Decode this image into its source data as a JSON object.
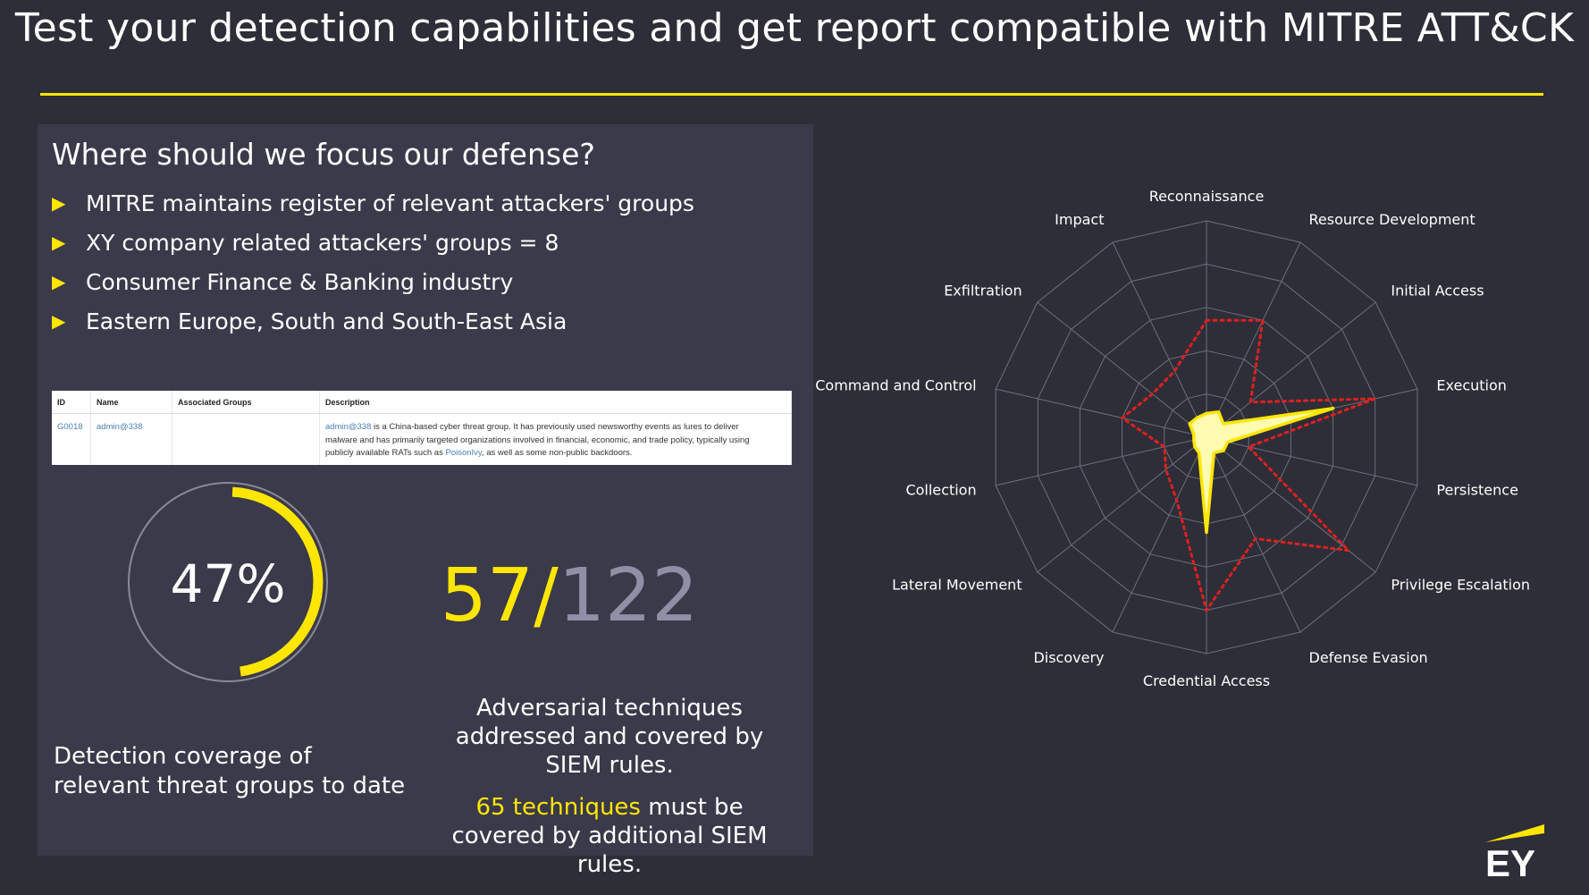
{
  "page": {
    "title": "Test your detection capabilities and get report compatible with MITRE ATT&CK"
  },
  "focus": {
    "heading": "Where should we focus our defense?",
    "bullets": [
      "MITRE maintains register of relevant attackers' groups",
      "XY company related attackers' groups = 8",
      "Consumer Finance & Banking industry",
      "Eastern Europe, South and South-East Asia"
    ],
    "bullet_icon": "triangle-right-icon"
  },
  "group_table": {
    "headers": [
      "ID",
      "Name",
      "Associated Groups",
      "Description"
    ],
    "row": {
      "id": "G0018",
      "name": "admin@338",
      "associated_groups": "",
      "description_line1_link": "admin@338",
      "description_line1_rest": " is a China-based cyber threat group. It has previously used newsworthy events as lures to deliver",
      "description_line2": "malware and has primarily targeted organizations involved in financial, economic, and trade policy, typically using",
      "description_line3_start": "publicly available RATs such as ",
      "description_line3_link": "PoisonIvy",
      "description_line3_end": ", as well as some non-public backdoors."
    }
  },
  "coverage": {
    "percent_label": "47%",
    "fraction": 0.47,
    "label": "Detection coverage of relevant threat groups to date"
  },
  "techniques": {
    "covered": "57",
    "slash": "/",
    "total": "122",
    "covered_label": "Adversarial techniques addressed and covered by SIEM rules.",
    "remaining_highlight": "65 techniques",
    "remaining_rest": " must be covered by additional SIEM rules."
  },
  "colors": {
    "background": "#2e2e38",
    "panel": "#3a3a4a",
    "accent_yellow": "#ffe600",
    "muted_number": "#8f8fa6",
    "required_line": "#e0201f",
    "grid": "#6e6e7e"
  },
  "chart_data": {
    "type": "radar",
    "categories": [
      "Reconnaissance",
      "Resource Development",
      "Initial Access",
      "Execution",
      "Persistence",
      "Privilege Escalation",
      "Defense Evasion",
      "Credential Access",
      "Discovery",
      "Lateral Movement",
      "Collection",
      "Command and Control",
      "Exfiltration",
      "Impact"
    ],
    "rlim": [
      0,
      5
    ],
    "rings": 5,
    "grid": true,
    "series": [
      {
        "values": [
          0.55,
          0.65,
          0.5,
          3,
          0.5,
          0.5,
          0.4,
          2.2,
          0.4,
          0.35,
          0.3,
          0.3,
          0.5,
          0.5
        ],
        "style": "filled yellow"
      },
      {
        "values": [
          2.7,
          3.0,
          1.3,
          4.0,
          1.0,
          4.2,
          2.6,
          4.0,
          1.6,
          1.2,
          1.0,
          2.0,
          1.6,
          1.7
        ],
        "style": "dotted red"
      }
    ]
  },
  "logo": {
    "text": "EY"
  }
}
